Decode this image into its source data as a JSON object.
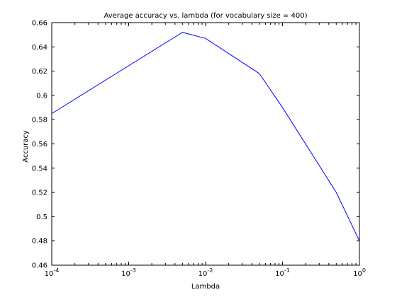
{
  "chart_data": {
    "type": "line",
    "title": "Average accuracy vs. lambda (for vocabulary size = 400)",
    "xlabel": "Lambda",
    "ylabel": "Accuracy",
    "xscale": "log",
    "xlim": [
      0.0001,
      1
    ],
    "ylim": [
      0.46,
      0.66
    ],
    "grid": false,
    "x_ticks": [
      {
        "value": 0.0001,
        "base": "10",
        "exp": "-4"
      },
      {
        "value": 0.001,
        "base": "10",
        "exp": "-3"
      },
      {
        "value": 0.01,
        "base": "10",
        "exp": "-2"
      },
      {
        "value": 0.1,
        "base": "10",
        "exp": "-1"
      },
      {
        "value": 1,
        "base": "10",
        "exp": "0"
      }
    ],
    "y_ticks": [
      0.46,
      0.48,
      0.5,
      0.52,
      0.54,
      0.56,
      0.58,
      0.6,
      0.62,
      0.64,
      0.66
    ],
    "y_tick_labels": [
      "0.46",
      "0.48",
      "0.5",
      "0.52",
      "0.54",
      "0.56",
      "0.58",
      "0.6",
      "0.62",
      "0.64",
      "0.66"
    ],
    "series": [
      {
        "color": "#0000ff",
        "x": [
          0.0001,
          0.005,
          0.01,
          0.05,
          0.1,
          0.5,
          1
        ],
        "y": [
          0.585,
          0.652,
          0.647,
          0.618,
          0.59,
          0.52,
          0.48
        ]
      }
    ]
  }
}
